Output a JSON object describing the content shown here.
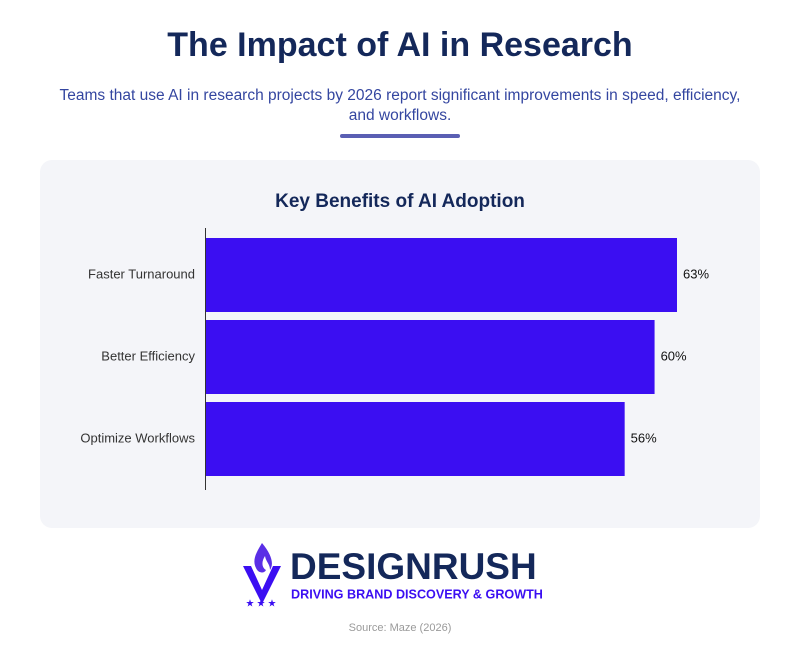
{
  "title": "The Impact of AI in Research",
  "subtitle": [
    "Teams that use AI in research projects by 2026 report significant improvements in speed, efficiency,",
    "and workflows."
  ],
  "chart_data": {
    "type": "bar",
    "orientation": "horizontal",
    "title": "Key Benefits of AI Adoption",
    "categories": [
      "Faster Turnaround",
      "Better Efficiency",
      "Optimize Workflows"
    ],
    "values": [
      63,
      60,
      56
    ],
    "value_labels": [
      "63%",
      "60%",
      "56%"
    ],
    "color": "#3b0ef2"
  },
  "brand": {
    "name": "DESIGNRUSH",
    "tagline": "DRIVING BRAND DISCOVERY & GROWTH"
  },
  "source": "Source: Maze (2026)"
}
